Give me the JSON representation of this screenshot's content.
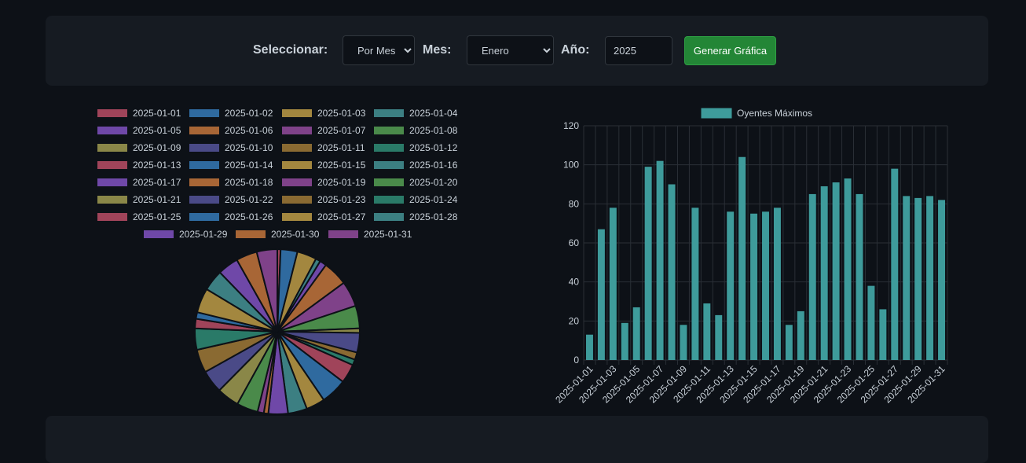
{
  "controls": {
    "select_label": "Seleccionar:",
    "select_value": "Por Mes",
    "month_label": "Mes:",
    "month_value": "Enero",
    "year_label": "Año:",
    "year_value": "2025",
    "button_label": "Generar Gráfica"
  },
  "colors": {
    "palette": [
      "#a0445a",
      "#2f6a9f",
      "#a3873f",
      "#3c7f82",
      "#6f48a8",
      "#a86636",
      "#7f4289",
      "#4a8a4a",
      "#8a8748",
      "#4a4a87",
      "#8a6a32",
      "#2a7a68"
    ],
    "bar": "#3e9b9b"
  },
  "chart_data": [
    {
      "type": "pie",
      "labels": [
        "2025-01-01",
        "2025-01-02",
        "2025-01-03",
        "2025-01-04",
        "2025-01-05",
        "2025-01-06",
        "2025-01-07",
        "2025-01-08",
        "2025-01-09",
        "2025-01-10",
        "2025-01-11",
        "2025-01-12",
        "2025-01-13",
        "2025-01-14",
        "2025-01-15",
        "2025-01-16",
        "2025-01-17",
        "2025-01-18",
        "2025-01-19",
        "2025-01-20",
        "2025-01-21",
        "2025-01-22",
        "2025-01-23",
        "2025-01-24",
        "2025-01-25",
        "2025-01-26",
        "2025-01-27",
        "2025-01-28",
        "2025-01-29",
        "2025-01-30",
        "2025-01-31"
      ],
      "values": [
        13,
        67,
        78,
        19,
        27,
        99,
        102,
        90,
        18,
        78,
        29,
        23,
        76,
        104,
        75,
        76,
        78,
        18,
        25,
        85,
        89,
        91,
        93,
        85,
        38,
        26,
        98,
        84,
        83,
        84,
        82
      ],
      "legend_position": "top"
    },
    {
      "type": "bar",
      "series": [
        {
          "name": "Oyentes Máximos",
          "values": [
            13,
            67,
            78,
            19,
            27,
            99,
            102,
            90,
            18,
            78,
            29,
            23,
            76,
            104,
            75,
            76,
            78,
            18,
            25,
            85,
            89,
            91,
            93,
            85,
            38,
            26,
            98,
            84,
            83,
            84,
            82
          ]
        }
      ],
      "categories": [
        "2025-01-01",
        "2025-01-02",
        "2025-01-03",
        "2025-01-04",
        "2025-01-05",
        "2025-01-06",
        "2025-01-07",
        "2025-01-08",
        "2025-01-09",
        "2025-01-10",
        "2025-01-11",
        "2025-01-12",
        "2025-01-13",
        "2025-01-14",
        "2025-01-15",
        "2025-01-16",
        "2025-01-17",
        "2025-01-18",
        "2025-01-19",
        "2025-01-20",
        "2025-01-21",
        "2025-01-22",
        "2025-01-23",
        "2025-01-24",
        "2025-01-25",
        "2025-01-26",
        "2025-01-27",
        "2025-01-28",
        "2025-01-29",
        "2025-01-30",
        "2025-01-31"
      ],
      "x_tick_labels": [
        "2025-01-01",
        "2025-01-03",
        "2025-01-05",
        "2025-01-07",
        "2025-01-09",
        "2025-01-11",
        "2025-01-13",
        "2025-01-15",
        "2025-01-17",
        "2025-01-19",
        "2025-01-21",
        "2025-01-23",
        "2025-01-25",
        "2025-01-27",
        "2025-01-29",
        "2025-01-31"
      ],
      "y_ticks": [
        0,
        20,
        40,
        60,
        80,
        100,
        120
      ],
      "ylim": [
        0,
        120
      ],
      "grid": true,
      "legend_position": "top"
    }
  ]
}
